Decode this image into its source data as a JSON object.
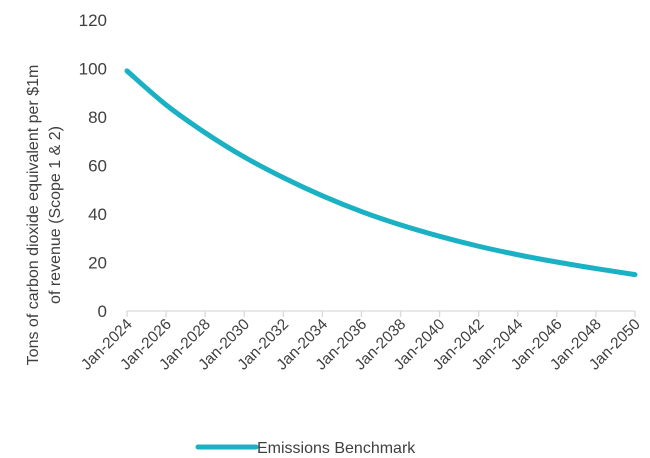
{
  "chart_data": {
    "type": "line",
    "title": "",
    "xlabel": "",
    "ylabel_lines": [
      "Tons of carbon dioxide equivalent per $1m",
      "of revenue (Scope 1 & 2)"
    ],
    "ylim": [
      0,
      120
    ],
    "yticks": [
      0,
      20,
      40,
      60,
      80,
      100,
      120
    ],
    "x_tick_labels": [
      "Jan-2024",
      "Jan-2026",
      "Jan-2028",
      "Jan-2030",
      "Jan-2032",
      "Jan-2034",
      "Jan-2036",
      "Jan-2038",
      "Jan-2040",
      "Jan-2042",
      "Jan-2044",
      "Jan-2046",
      "Jan-2048",
      "Jan-2050"
    ],
    "x": [
      "Jan-2024",
      "Jan-2026",
      "Jan-2028",
      "Jan-2030",
      "Jan-2032",
      "Jan-2034",
      "Jan-2036",
      "Jan-2038",
      "Jan-2040",
      "Jan-2042",
      "Jan-2044",
      "Jan-2046",
      "Jan-2048",
      "Jan-2050"
    ],
    "series": [
      {
        "name": "Emissions Benchmark",
        "color": "#1BB1C4",
        "values": [
          99,
          85,
          73.5,
          63.5,
          55,
          47.5,
          41,
          35.5,
          30.8,
          26.7,
          23.2,
          20.2,
          17.5,
          15
        ]
      }
    ],
    "grid": false,
    "legend": "bottom-center"
  }
}
